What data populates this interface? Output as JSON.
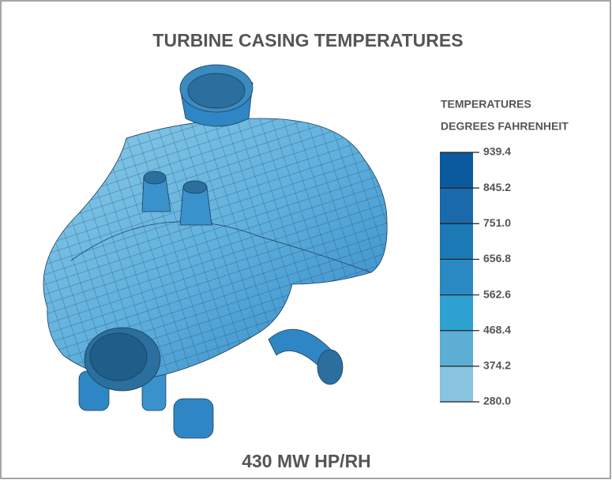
{
  "title": "TURBINE CASING TEMPERATURES",
  "legend": {
    "title_lines": [
      "TEMPERATURES",
      "DEGREES FAHRENHEIT"
    ],
    "ticks": [
      "939.4",
      "845.2",
      "751.0",
      "656.8",
      "562.6",
      "468.4",
      "374.2",
      "280.0"
    ]
  },
  "caption": "430 MW HP/RH"
}
